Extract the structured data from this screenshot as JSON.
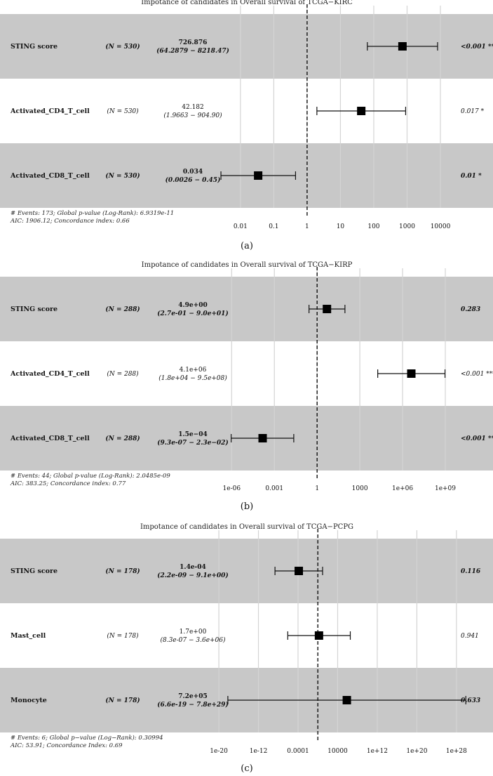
{
  "chart_data": [
    {
      "type": "forest",
      "title": "Impotance of candidates in Overall survival of TCGA−KIRC",
      "panel_label": "(a)",
      "log_scale": true,
      "xlim": [
        0.003,
        60000
      ],
      "x_ticks": [
        {
          "value": 0.01,
          "label": "0.01"
        },
        {
          "value": 0.1,
          "label": "0.1"
        },
        {
          "value": 1,
          "label": "1"
        },
        {
          "value": 10,
          "label": "10"
        },
        {
          "value": 100,
          "label": "100"
        },
        {
          "value": 1000,
          "label": "1000"
        },
        {
          "value": 10000,
          "label": "10000"
        }
      ],
      "reference_line": 1,
      "rows": [
        {
          "name": "STING score",
          "n": "(N = 530)",
          "estimate_label": "726.876",
          "ci_label": "(64.2879 − 8218.47)",
          "hr": 726.876,
          "lower": 64.2879,
          "upper": 8218.47,
          "p_label": "<0.001 ***",
          "bold": true
        },
        {
          "name": "Activated_CD4_T_cell",
          "n": "(N = 530)",
          "estimate_label": "42.182",
          "ci_label": "(1.9663 − 904.90)",
          "hr": 42.182,
          "lower": 1.9663,
          "upper": 904.9,
          "p_label": "0.017 *",
          "bold": false
        },
        {
          "name": "Activated_CD8_T_cell",
          "n": "(N = 530)",
          "estimate_label": "0.034",
          "ci_label": "(0.0026 − 0.45)",
          "hr": 0.034,
          "lower": 0.0026,
          "upper": 0.45,
          "p_label": "0.01 *",
          "bold": true
        }
      ],
      "footer": [
        "# Events: 173; Global p-value (Log-Rank): 6.9319e-11",
        "AIC: 1906.12; Concordance index: 0.66"
      ]
    },
    {
      "type": "forest",
      "title": "Impotance of candidates in Overall survival of TCGA−KIRP",
      "panel_label": "(b)",
      "log_scale": true,
      "xlim": [
        1e-07,
        30000000000.0
      ],
      "x_ticks": [
        {
          "value": 1e-06,
          "label": "1e-06"
        },
        {
          "value": 0.001,
          "label": "0.001"
        },
        {
          "value": 1,
          "label": "1"
        },
        {
          "value": 1000,
          "label": "1000"
        },
        {
          "value": 1000000.0,
          "label": "1e+06"
        },
        {
          "value": 1000000000.0,
          "label": "1e+09"
        }
      ],
      "reference_line": 1,
      "rows": [
        {
          "name": "STING score",
          "n": "(N = 288)",
          "estimate_label": "4.9e+00",
          "ci_label": "(2.7e-01 − 9.0e+01)",
          "hr": 4.9,
          "lower": 0.27,
          "upper": 90,
          "p_label": "0.283",
          "bold": true
        },
        {
          "name": "Activated_CD4_T_cell",
          "n": "(N = 288)",
          "estimate_label": "4.1e+06",
          "ci_label": "(1.8e+04 − 9.5e+08)",
          "hr": 4100000.0,
          "lower": 18000.0,
          "upper": 950000000.0,
          "p_label": "<0.001 ***",
          "bold": false
        },
        {
          "name": "Activated_CD8_T_cell",
          "n": "(N = 288)",
          "estimate_label": "1.5e−04",
          "ci_label": "(9.3e-07 − 2.3e−02)",
          "hr": 0.00015,
          "lower": 9.3e-07,
          "upper": 0.023,
          "p_label": "<0.001 ***",
          "bold": true
        }
      ],
      "footer": [
        "# Events: 44; Global p-value (Log-Rank): 2.0485e-09",
        "AIC: 383.25; Concordance index: 0.77"
      ]
    },
    {
      "type": "forest",
      "title": "Impotance of candidates in Overall survival of TCGA−PCPG",
      "panel_label": "(c)",
      "log_scale": true,
      "xlim": [
        1e-21,
        1e+30
      ],
      "x_ticks": [
        {
          "value": 1e-20,
          "label": "1e-20"
        },
        {
          "value": 1e-12,
          "label": "1e-12"
        },
        {
          "value": 0.0001,
          "label": "0.0001"
        },
        {
          "value": 10000.0,
          "label": "10000"
        },
        {
          "value": 1000000000000.0,
          "label": "1e+12"
        },
        {
          "value": 1e+20,
          "label": "1e+20"
        },
        {
          "value": 1e+28,
          "label": "1e+28"
        }
      ],
      "reference_line": 1,
      "rows": [
        {
          "name": "STING score",
          "n": "(N = 178)",
          "estimate_label": "1.4e-04",
          "ci_label": "(2.2e-09 − 9.1e+00)",
          "hr": 0.00014,
          "lower": 2.2e-09,
          "upper": 9.1,
          "p_label": "0.116",
          "bold": true
        },
        {
          "name": "Mast_cell",
          "n": "(N = 178)",
          "estimate_label": "1.7e+00",
          "ci_label": "(8.3e-07 − 3.6e+06)",
          "hr": 1.7,
          "lower": 8.3e-07,
          "upper": 3600000.0,
          "p_label": "0.941",
          "bold": false
        },
        {
          "name": "Monocyte",
          "n": "(N = 178)",
          "estimate_label": "7.2e+05",
          "ci_label": "(6.6e-19 − 7.8e+29)",
          "hr": 720000.0,
          "lower": 6.6e-19,
          "upper": 7.8e+29,
          "p_label": "0.633",
          "bold": true
        }
      ],
      "footer": [
        "# Events: 6; Global p−value (Log−Rank): 0.30994",
        "AIC: 53.91; Concordance Index: 0.69"
      ]
    }
  ]
}
